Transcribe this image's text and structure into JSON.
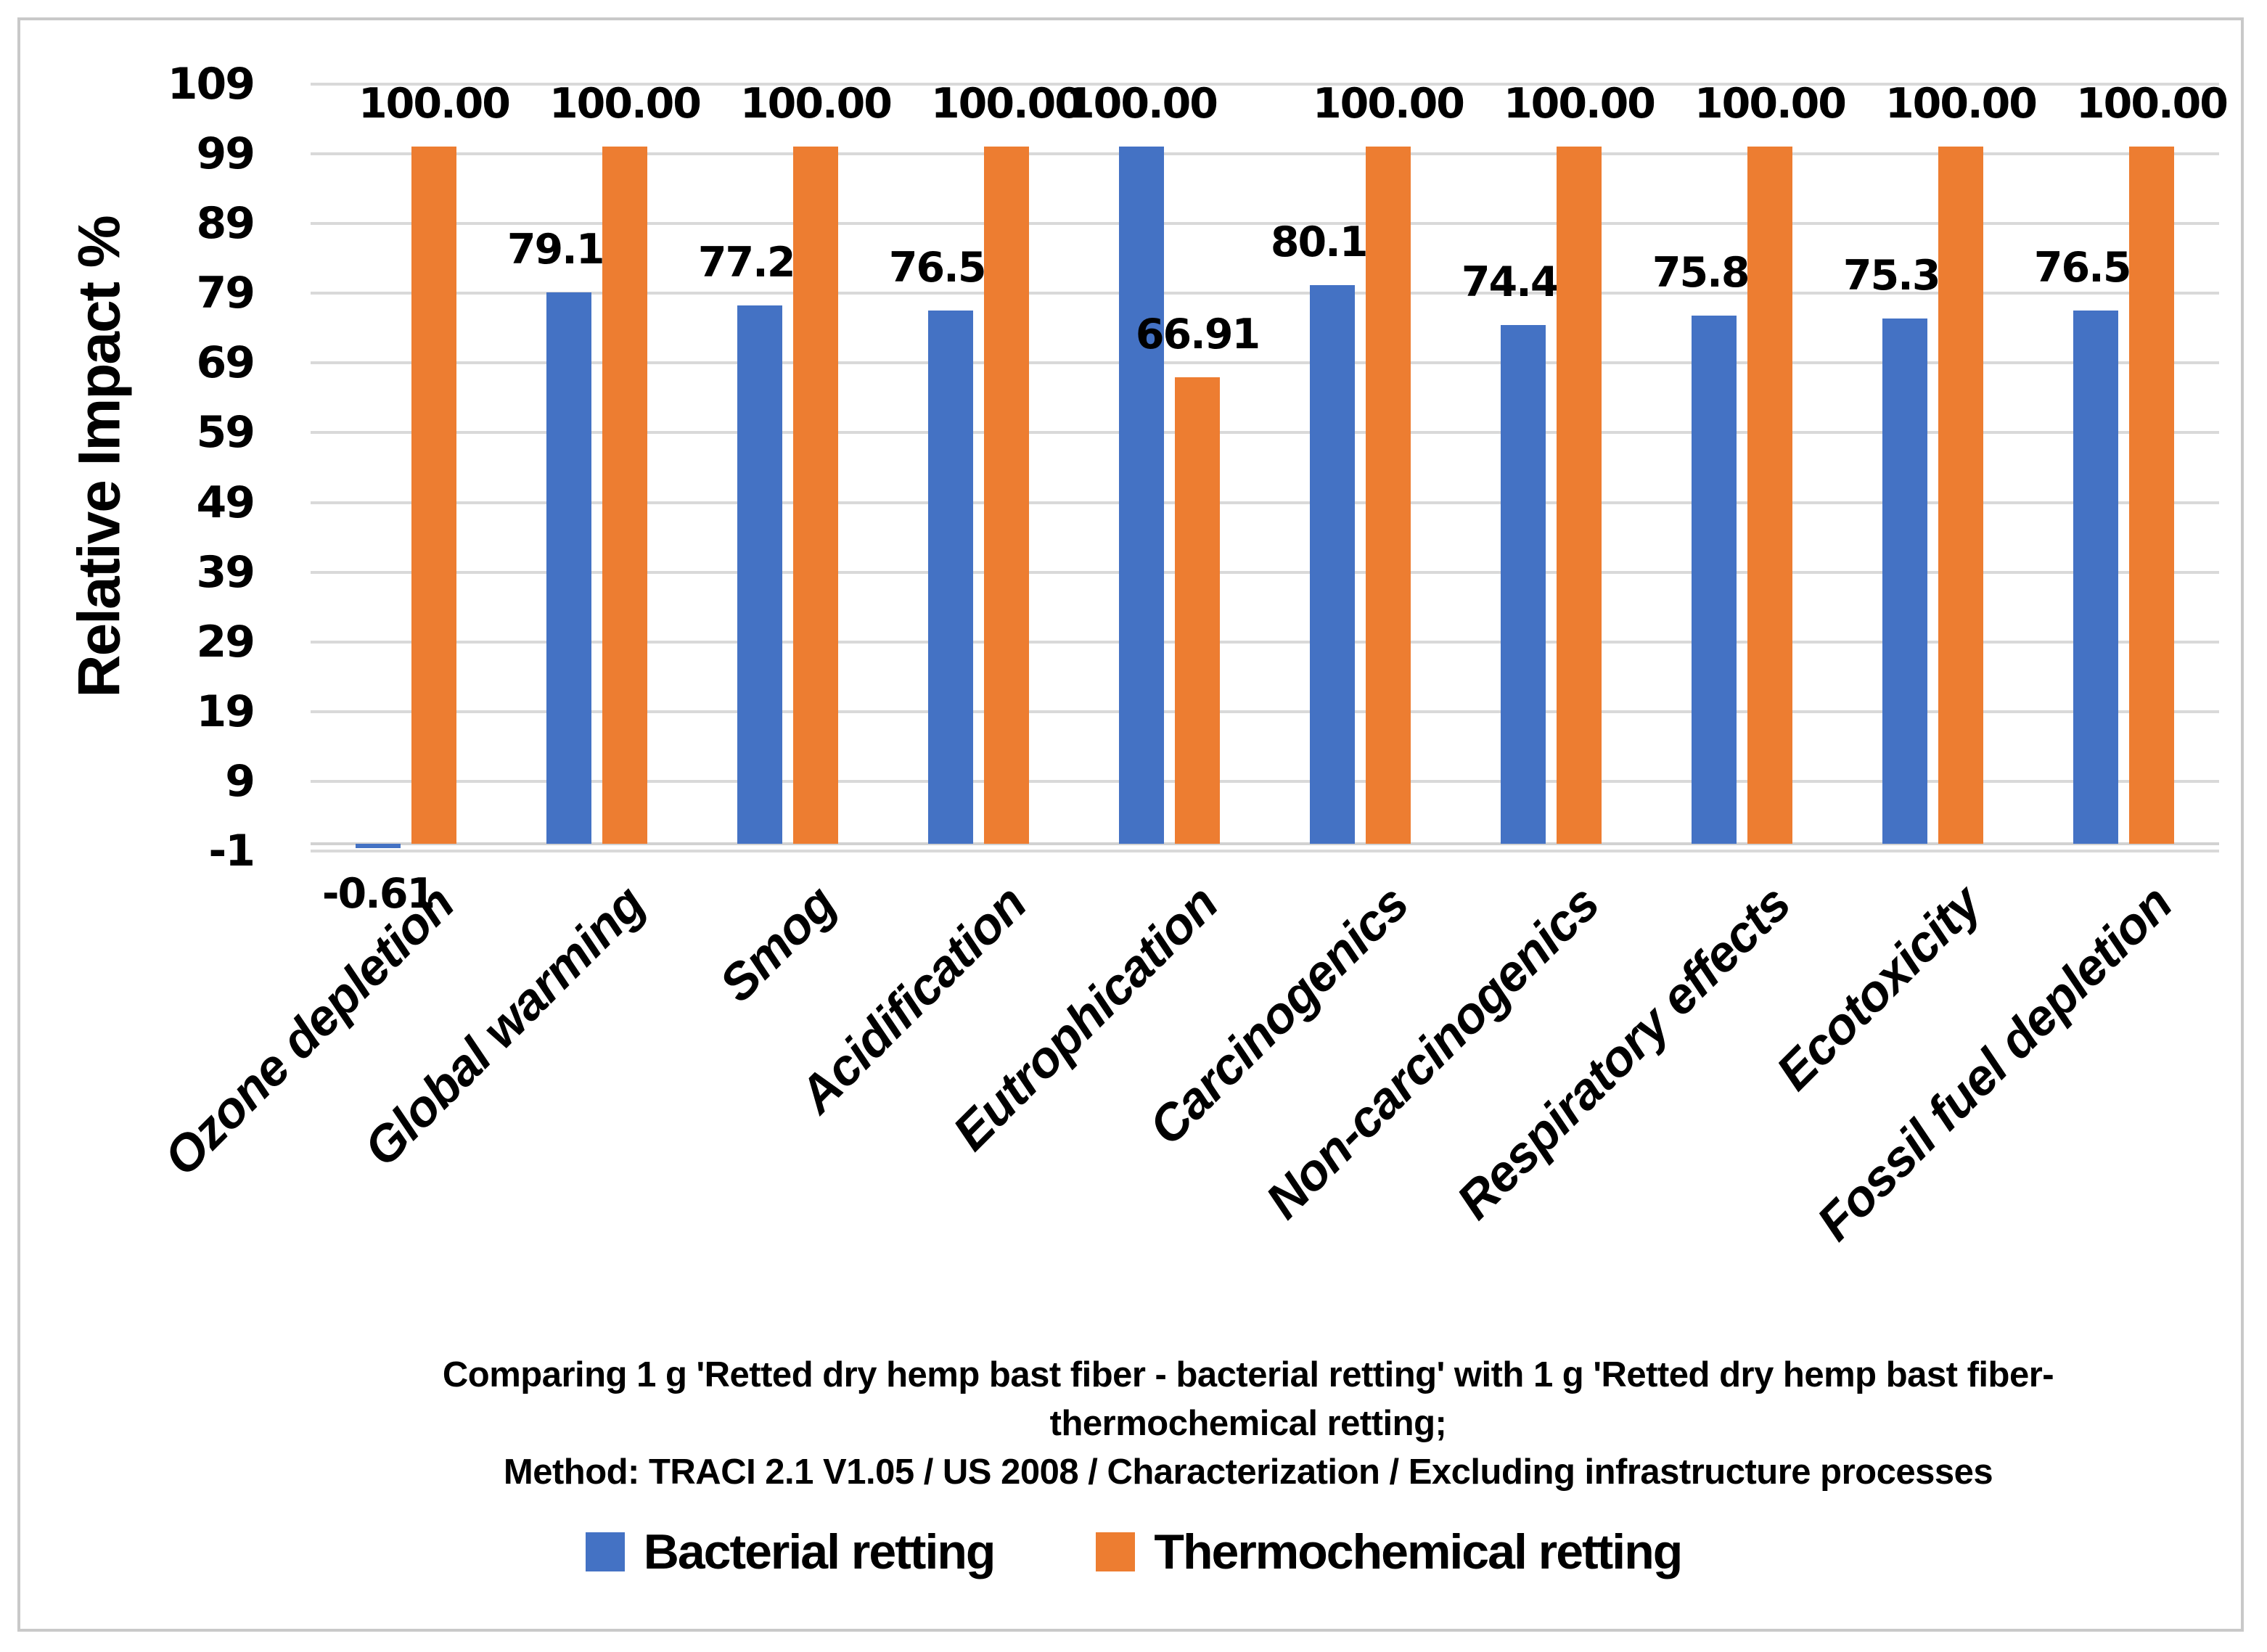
{
  "chart_data": {
    "type": "bar",
    "ylabel": "Relative Impact %",
    "xlabel": "",
    "ylim": [
      -1,
      109
    ],
    "y_ticks": [
      109,
      99,
      89,
      79,
      69,
      59,
      49,
      39,
      29,
      19,
      9,
      -1
    ],
    "grid": true,
    "legend_position": "bottom",
    "categories": [
      "Ozone depletion",
      "Global warming",
      "Smog",
      "Acidification",
      "Eutrophication",
      "Carcinogenics",
      "Non-carcinogenics",
      "Respiratory effects",
      "Ecotoxicity",
      "Fossil fuel depletion"
    ],
    "series": [
      {
        "name": "Bacterial retting",
        "color": "#4472C4",
        "values": [
          -0.61,
          79.17,
          77.25,
          76.56,
          100.0,
          80.13,
          74.48,
          75.81,
          75.36,
          76.54
        ],
        "labels": [
          "-0.61",
          "79.17",
          "77.25",
          "76.56",
          "100.00",
          "80.13",
          "74.48",
          "75.81",
          "75.36",
          "76.54"
        ]
      },
      {
        "name": "Thermochemical retting",
        "color": "#ED7D31",
        "values": [
          100.0,
          100.0,
          100.0,
          100.0,
          66.91,
          100.0,
          100.0,
          100.0,
          100.0,
          100.0
        ],
        "labels": [
          "100.00",
          "100.00",
          "100.00",
          "100.00",
          "66.91",
          "100.00",
          "100.00",
          "100.00",
          "100.00",
          "100.00"
        ]
      }
    ]
  },
  "caption": {
    "line1": "Comparing 1 g 'Retted dry hemp bast fiber - bacterial retting' with 1 g 'Retted dry hemp bast fiber-",
    "line2": "thermochemical retting;",
    "line3": "Method: TRACI 2.1 V1.05 / US 2008 / Characterization / Excluding infrastructure processes"
  },
  "colors": {
    "bacterial": "#4472C4",
    "thermochemical": "#ED7D31",
    "gridline": "#D9D9D9",
    "chart_border": "#C9C9C9"
  }
}
